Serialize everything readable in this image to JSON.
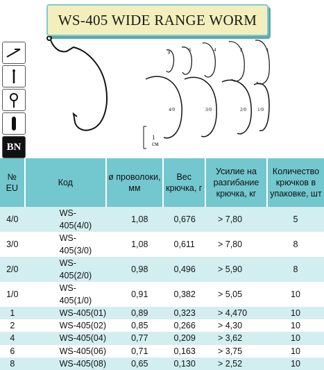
{
  "title": "WS-405 WIDE RANGE WORM",
  "icons": [
    {
      "name": "hook-point-icon"
    },
    {
      "name": "straight-shank-icon"
    },
    {
      "name": "ring-eye-icon"
    },
    {
      "name": "black-coating-icon"
    },
    {
      "name": "bn-finish-icon",
      "label": "BN"
    }
  ],
  "size_labels": [
    "8",
    "6",
    "4",
    "2",
    "1",
    "4/0",
    "3/0",
    "2/0",
    "1/0"
  ],
  "scale_label": "1 см",
  "table": {
    "headers": [
      "№ EU",
      "Код",
      "ø проволоки, мм",
      "Вес крючка, г",
      "Усилие на разгибание крючка, кг",
      "Количество крючков в упаковке, шт"
    ],
    "rows": [
      [
        "4/0",
        "WS-405(4/0)",
        "1,08",
        "0,676",
        "> 7,80",
        "5"
      ],
      [
        "3/0",
        "WS-405(3/0)",
        "1,08",
        "0,611",
        "> 7,80",
        "8"
      ],
      [
        "2/0",
        "WS-405(2/0)",
        "0,98",
        "0,496",
        "> 5,90",
        "8"
      ],
      [
        "1/0",
        "WS-405(1/0)",
        "0,91",
        "0,382",
        "> 5,05",
        "10"
      ],
      [
        "1",
        "WS-405(01)",
        "0,89",
        "0,323",
        "> 4,470",
        "10"
      ],
      [
        "2",
        "WS-405(02)",
        "0,85",
        "0,266",
        "> 4,30",
        "10"
      ],
      [
        "4",
        "WS-405(04)",
        "0,77",
        "0,209",
        "> 3,62",
        "10"
      ],
      [
        "6",
        "WS-405(06)",
        "0,71",
        "0,163",
        "> 3,75",
        "10"
      ],
      [
        "8",
        "WS-405(08)",
        "0,65",
        "0,130",
        "> 2,52",
        "10"
      ]
    ]
  }
}
